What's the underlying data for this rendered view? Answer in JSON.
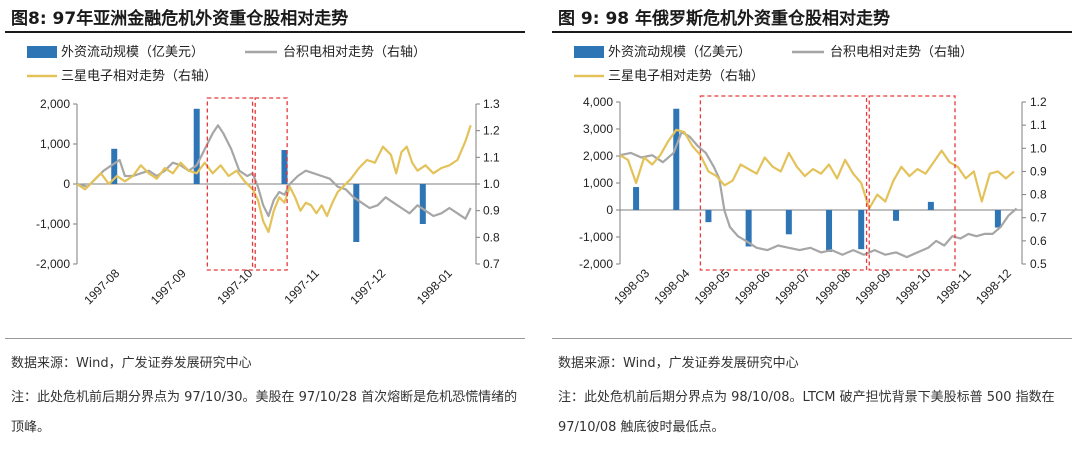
{
  "panels": [
    {
      "title": "图8: 97年亚洲金融危机外资重仓股相对走势",
      "source": "数据来源：Wind，广发证券发展研究中心",
      "note": "注：此处危机前后期分界点为 97/10/30。美股在 97/10/28 首次熔断是危机恐慌情绪的顶峰。"
    },
    {
      "title": "图 9:  98 年俄罗斯危机外资重仓股相对走势",
      "source": "数据来源：Wind，广发证券发展研究中心",
      "note": "注：此处危机前后期分界点为 98/10/08。LTCM 破产担忧背景下美股标普 500 指数在 97/10/08 触底彼时最低点。"
    }
  ],
  "colors": {
    "bar": "#2e75b6",
    "tsmc": "#a6a6a6",
    "samsung": "#e3c25a",
    "box": "#e8393b"
  },
  "chart_data": [
    {
      "type": "bar+line",
      "legend": [
        "外资流动规模（亿美元）",
        "台积电相对走势（右轴）",
        "三星电子相对走势（右轴）"
      ],
      "x_labels": [
        "1997-08",
        "1997-09",
        "1997-10",
        "1997-11",
        "1997-12",
        "1998-01"
      ],
      "x_range": [
        0,
        150
      ],
      "yleft": {
        "min": -2000,
        "max": 2000,
        "ticks": [
          -2000,
          -1000,
          0,
          1000,
          2000
        ],
        "labels": [
          "-2,000",
          "-1,000",
          "0",
          "1,000",
          "2,000"
        ]
      },
      "yright": {
        "min": 0.7,
        "max": 1.3,
        "ticks": [
          0.7,
          0.8,
          0.9,
          1.0,
          1.1,
          1.2,
          1.3
        ],
        "labels": [
          "0.7",
          "0.8",
          "0.9",
          "1.0",
          "1.1",
          "1.2",
          "1.3"
        ]
      },
      "bars": [
        {
          "x": 14,
          "value": 880
        },
        {
          "x": 45,
          "value": 1880
        },
        {
          "x": 78,
          "value": 850
        },
        {
          "x": 105,
          "value": -1450
        },
        {
          "x": 130,
          "value": -1000
        }
      ],
      "series": [
        {
          "name": "台积电相对走势（右轴）",
          "points": [
            [
              0,
              1.0
            ],
            [
              4,
              0.99
            ],
            [
              7,
              1.02
            ],
            [
              10,
              1.05
            ],
            [
              13,
              1.07
            ],
            [
              16,
              1.09
            ],
            [
              18,
              1.03
            ],
            [
              21,
              1.03
            ],
            [
              24,
              1.04
            ],
            [
              27,
              1.05
            ],
            [
              30,
              1.03
            ],
            [
              33,
              1.05
            ],
            [
              36,
              1.08
            ],
            [
              39,
              1.07
            ],
            [
              42,
              1.05
            ],
            [
              45,
              1.07
            ],
            [
              48,
              1.13
            ],
            [
              51,
              1.19
            ],
            [
              53,
              1.22
            ],
            [
              55,
              1.19
            ],
            [
              58,
              1.13
            ],
            [
              61,
              1.05
            ],
            [
              64,
              1.03
            ],
            [
              66,
              1.04
            ],
            [
              68,
              0.99
            ],
            [
              70,
              0.92
            ],
            [
              72,
              0.88
            ],
            [
              74,
              0.94
            ],
            [
              76,
              0.97
            ],
            [
              78,
              0.96
            ],
            [
              80,
              1.0
            ],
            [
              83,
              1.03
            ],
            [
              86,
              1.05
            ],
            [
              89,
              1.04
            ],
            [
              92,
              1.03
            ],
            [
              95,
              1.02
            ],
            [
              98,
              0.99
            ],
            [
              101,
              0.98
            ],
            [
              104,
              0.95
            ],
            [
              107,
              0.93
            ],
            [
              110,
              0.91
            ],
            [
              113,
              0.92
            ],
            [
              116,
              0.95
            ],
            [
              119,
              0.93
            ],
            [
              122,
              0.91
            ],
            [
              125,
              0.89
            ],
            [
              128,
              0.92
            ],
            [
              131,
              0.9
            ],
            [
              134,
              0.88
            ],
            [
              137,
              0.89
            ],
            [
              140,
              0.91
            ],
            [
              143,
              0.89
            ],
            [
              146,
              0.87
            ],
            [
              148,
              0.91
            ]
          ]
        },
        {
          "name": "三星电子相对走势（右轴）",
          "points": [
            [
              0,
              1.0
            ],
            [
              3,
              0.98
            ],
            [
              6,
              1.01
            ],
            [
              9,
              1.04
            ],
            [
              12,
              1.0
            ],
            [
              15,
              1.03
            ],
            [
              18,
              1.01
            ],
            [
              21,
              1.03
            ],
            [
              24,
              1.07
            ],
            [
              27,
              1.04
            ],
            [
              30,
              1.02
            ],
            [
              33,
              1.06
            ],
            [
              36,
              1.04
            ],
            [
              39,
              1.08
            ],
            [
              42,
              1.05
            ],
            [
              45,
              1.04
            ],
            [
              48,
              1.08
            ],
            [
              51,
              1.04
            ],
            [
              54,
              1.07
            ],
            [
              57,
              1.03
            ],
            [
              60,
              1.05
            ],
            [
              63,
              1.01
            ],
            [
              66,
              0.98
            ],
            [
              68,
              0.94
            ],
            [
              70,
              0.86
            ],
            [
              72,
              0.82
            ],
            [
              74,
              0.9
            ],
            [
              76,
              0.95
            ],
            [
              78,
              0.93
            ],
            [
              80,
              0.99
            ],
            [
              82,
              0.95
            ],
            [
              84,
              0.9
            ],
            [
              86,
              0.93
            ],
            [
              88,
              0.92
            ],
            [
              90,
              0.89
            ],
            [
              92,
              0.92
            ],
            [
              94,
              0.88
            ],
            [
              96,
              0.93
            ],
            [
              98,
              0.97
            ],
            [
              100,
              0.99
            ],
            [
              103,
              1.02
            ],
            [
              106,
              1.06
            ],
            [
              109,
              1.09
            ],
            [
              112,
              1.08
            ],
            [
              115,
              1.14
            ],
            [
              118,
              1.11
            ],
            [
              120,
              1.04
            ],
            [
              122,
              1.12
            ],
            [
              124,
              1.14
            ],
            [
              126,
              1.08
            ],
            [
              128,
              1.05
            ],
            [
              131,
              1.07
            ],
            [
              134,
              1.04
            ],
            [
              137,
              1.06
            ],
            [
              140,
              1.07
            ],
            [
              143,
              1.09
            ],
            [
              146,
              1.16
            ],
            [
              148,
              1.22
            ]
          ]
        }
      ],
      "dashed_boxes": [
        {
          "x0": 49,
          "x1": 66
        },
        {
          "x0": 67,
          "x1": 79
        }
      ]
    },
    {
      "type": "bar+line",
      "legend": [
        "外资流动规模（亿美元）",
        "台积电相对走势（右轴）",
        "三星电子相对走势（右轴）"
      ],
      "x_labels": [
        "1998-03",
        "1998-04",
        "1998-05",
        "1998-06",
        "1998-07",
        "1998-08",
        "1998-09",
        "1998-10",
        "1998-11",
        "1998-12"
      ],
      "x_range": [
        0,
        150
      ],
      "yleft": {
        "min": -2000,
        "max": 4000,
        "ticks": [
          -2000,
          -1000,
          0,
          1000,
          2000,
          3000,
          4000
        ],
        "labels": [
          "-2,000",
          "-1,000",
          "0",
          "1,000",
          "2,000",
          "3,000",
          "4,000"
        ]
      },
      "yright": {
        "min": 0.5,
        "max": 1.2,
        "ticks": [
          0.5,
          0.6,
          0.7,
          0.8,
          0.9,
          1.0,
          1.1,
          1.2
        ],
        "labels": [
          "0.5",
          "0.6",
          "0.7",
          "0.8",
          "0.9",
          "1.0",
          "1.1",
          "1.2"
        ]
      },
      "bars": [
        {
          "x": 6,
          "value": 850
        },
        {
          "x": 21,
          "value": 3750
        },
        {
          "x": 33,
          "value": -450
        },
        {
          "x": 48,
          "value": -1350
        },
        {
          "x": 63,
          "value": -900
        },
        {
          "x": 78,
          "value": -1550
        },
        {
          "x": 90,
          "value": -1450
        },
        {
          "x": 103,
          "value": -400
        },
        {
          "x": 116,
          "value": 300
        },
        {
          "x": 141,
          "value": -650
        }
      ],
      "series": [
        {
          "name": "台积电相对走势（右轴）",
          "points": [
            [
              0,
              0.97
            ],
            [
              4,
              0.98
            ],
            [
              8,
              0.96
            ],
            [
              12,
              0.97
            ],
            [
              16,
              0.94
            ],
            [
              20,
              0.98
            ],
            [
              23,
              1.07
            ],
            [
              26,
              1.05
            ],
            [
              29,
              1.01
            ],
            [
              32,
              0.98
            ],
            [
              35,
              0.92
            ],
            [
              37,
              0.87
            ],
            [
              39,
              0.73
            ],
            [
              41,
              0.66
            ],
            [
              44,
              0.62
            ],
            [
              47,
              0.6
            ],
            [
              51,
              0.57
            ],
            [
              55,
              0.56
            ],
            [
              59,
              0.58
            ],
            [
              63,
              0.57
            ],
            [
              67,
              0.56
            ],
            [
              71,
              0.57
            ],
            [
              75,
              0.55
            ],
            [
              79,
              0.56
            ],
            [
              83,
              0.54
            ],
            [
              87,
              0.56
            ],
            [
              91,
              0.54
            ],
            [
              95,
              0.56
            ],
            [
              99,
              0.54
            ],
            [
              103,
              0.55
            ],
            [
              107,
              0.53
            ],
            [
              111,
              0.55
            ],
            [
              115,
              0.57
            ],
            [
              118,
              0.6
            ],
            [
              121,
              0.58
            ],
            [
              124,
              0.62
            ],
            [
              127,
              0.61
            ],
            [
              130,
              0.63
            ],
            [
              133,
              0.62
            ],
            [
              136,
              0.63
            ],
            [
              139,
              0.63
            ],
            [
              142,
              0.66
            ],
            [
              145,
              0.71
            ],
            [
              148,
              0.74
            ]
          ]
        },
        {
          "name": "三星电子相对走势（右轴）",
          "points": [
            [
              0,
              0.97
            ],
            [
              3,
              0.95
            ],
            [
              6,
              0.85
            ],
            [
              9,
              0.96
            ],
            [
              12,
              0.93
            ],
            [
              15,
              0.97
            ],
            [
              18,
              1.03
            ],
            [
              21,
              1.08
            ],
            [
              24,
              1.07
            ],
            [
              27,
              1.01
            ],
            [
              30,
              0.97
            ],
            [
              33,
              0.9
            ],
            [
              36,
              0.88
            ],
            [
              39,
              0.84
            ],
            [
              42,
              0.86
            ],
            [
              45,
              0.93
            ],
            [
              48,
              0.91
            ],
            [
              51,
              0.89
            ],
            [
              54,
              0.96
            ],
            [
              57,
              0.92
            ],
            [
              60,
              0.9
            ],
            [
              63,
              0.98
            ],
            [
              66,
              0.92
            ],
            [
              69,
              0.88
            ],
            [
              72,
              0.91
            ],
            [
              75,
              0.89
            ],
            [
              78,
              0.93
            ],
            [
              81,
              0.87
            ],
            [
              84,
              0.95
            ],
            [
              87,
              0.89
            ],
            [
              90,
              0.85
            ],
            [
              93,
              0.74
            ],
            [
              96,
              0.8
            ],
            [
              99,
              0.77
            ],
            [
              102,
              0.86
            ],
            [
              105,
              0.92
            ],
            [
              108,
              0.88
            ],
            [
              111,
              0.91
            ],
            [
              114,
              0.89
            ],
            [
              117,
              0.94
            ],
            [
              120,
              0.99
            ],
            [
              123,
              0.94
            ],
            [
              126,
              0.92
            ],
            [
              129,
              0.87
            ],
            [
              132,
              0.9
            ],
            [
              135,
              0.77
            ],
            [
              138,
              0.89
            ],
            [
              141,
              0.9
            ],
            [
              144,
              0.87
            ],
            [
              147,
              0.9
            ]
          ]
        }
      ],
      "dashed_boxes": [
        {
          "x0": 30,
          "x1": 92
        },
        {
          "x0": 93,
          "x1": 125
        }
      ]
    }
  ]
}
